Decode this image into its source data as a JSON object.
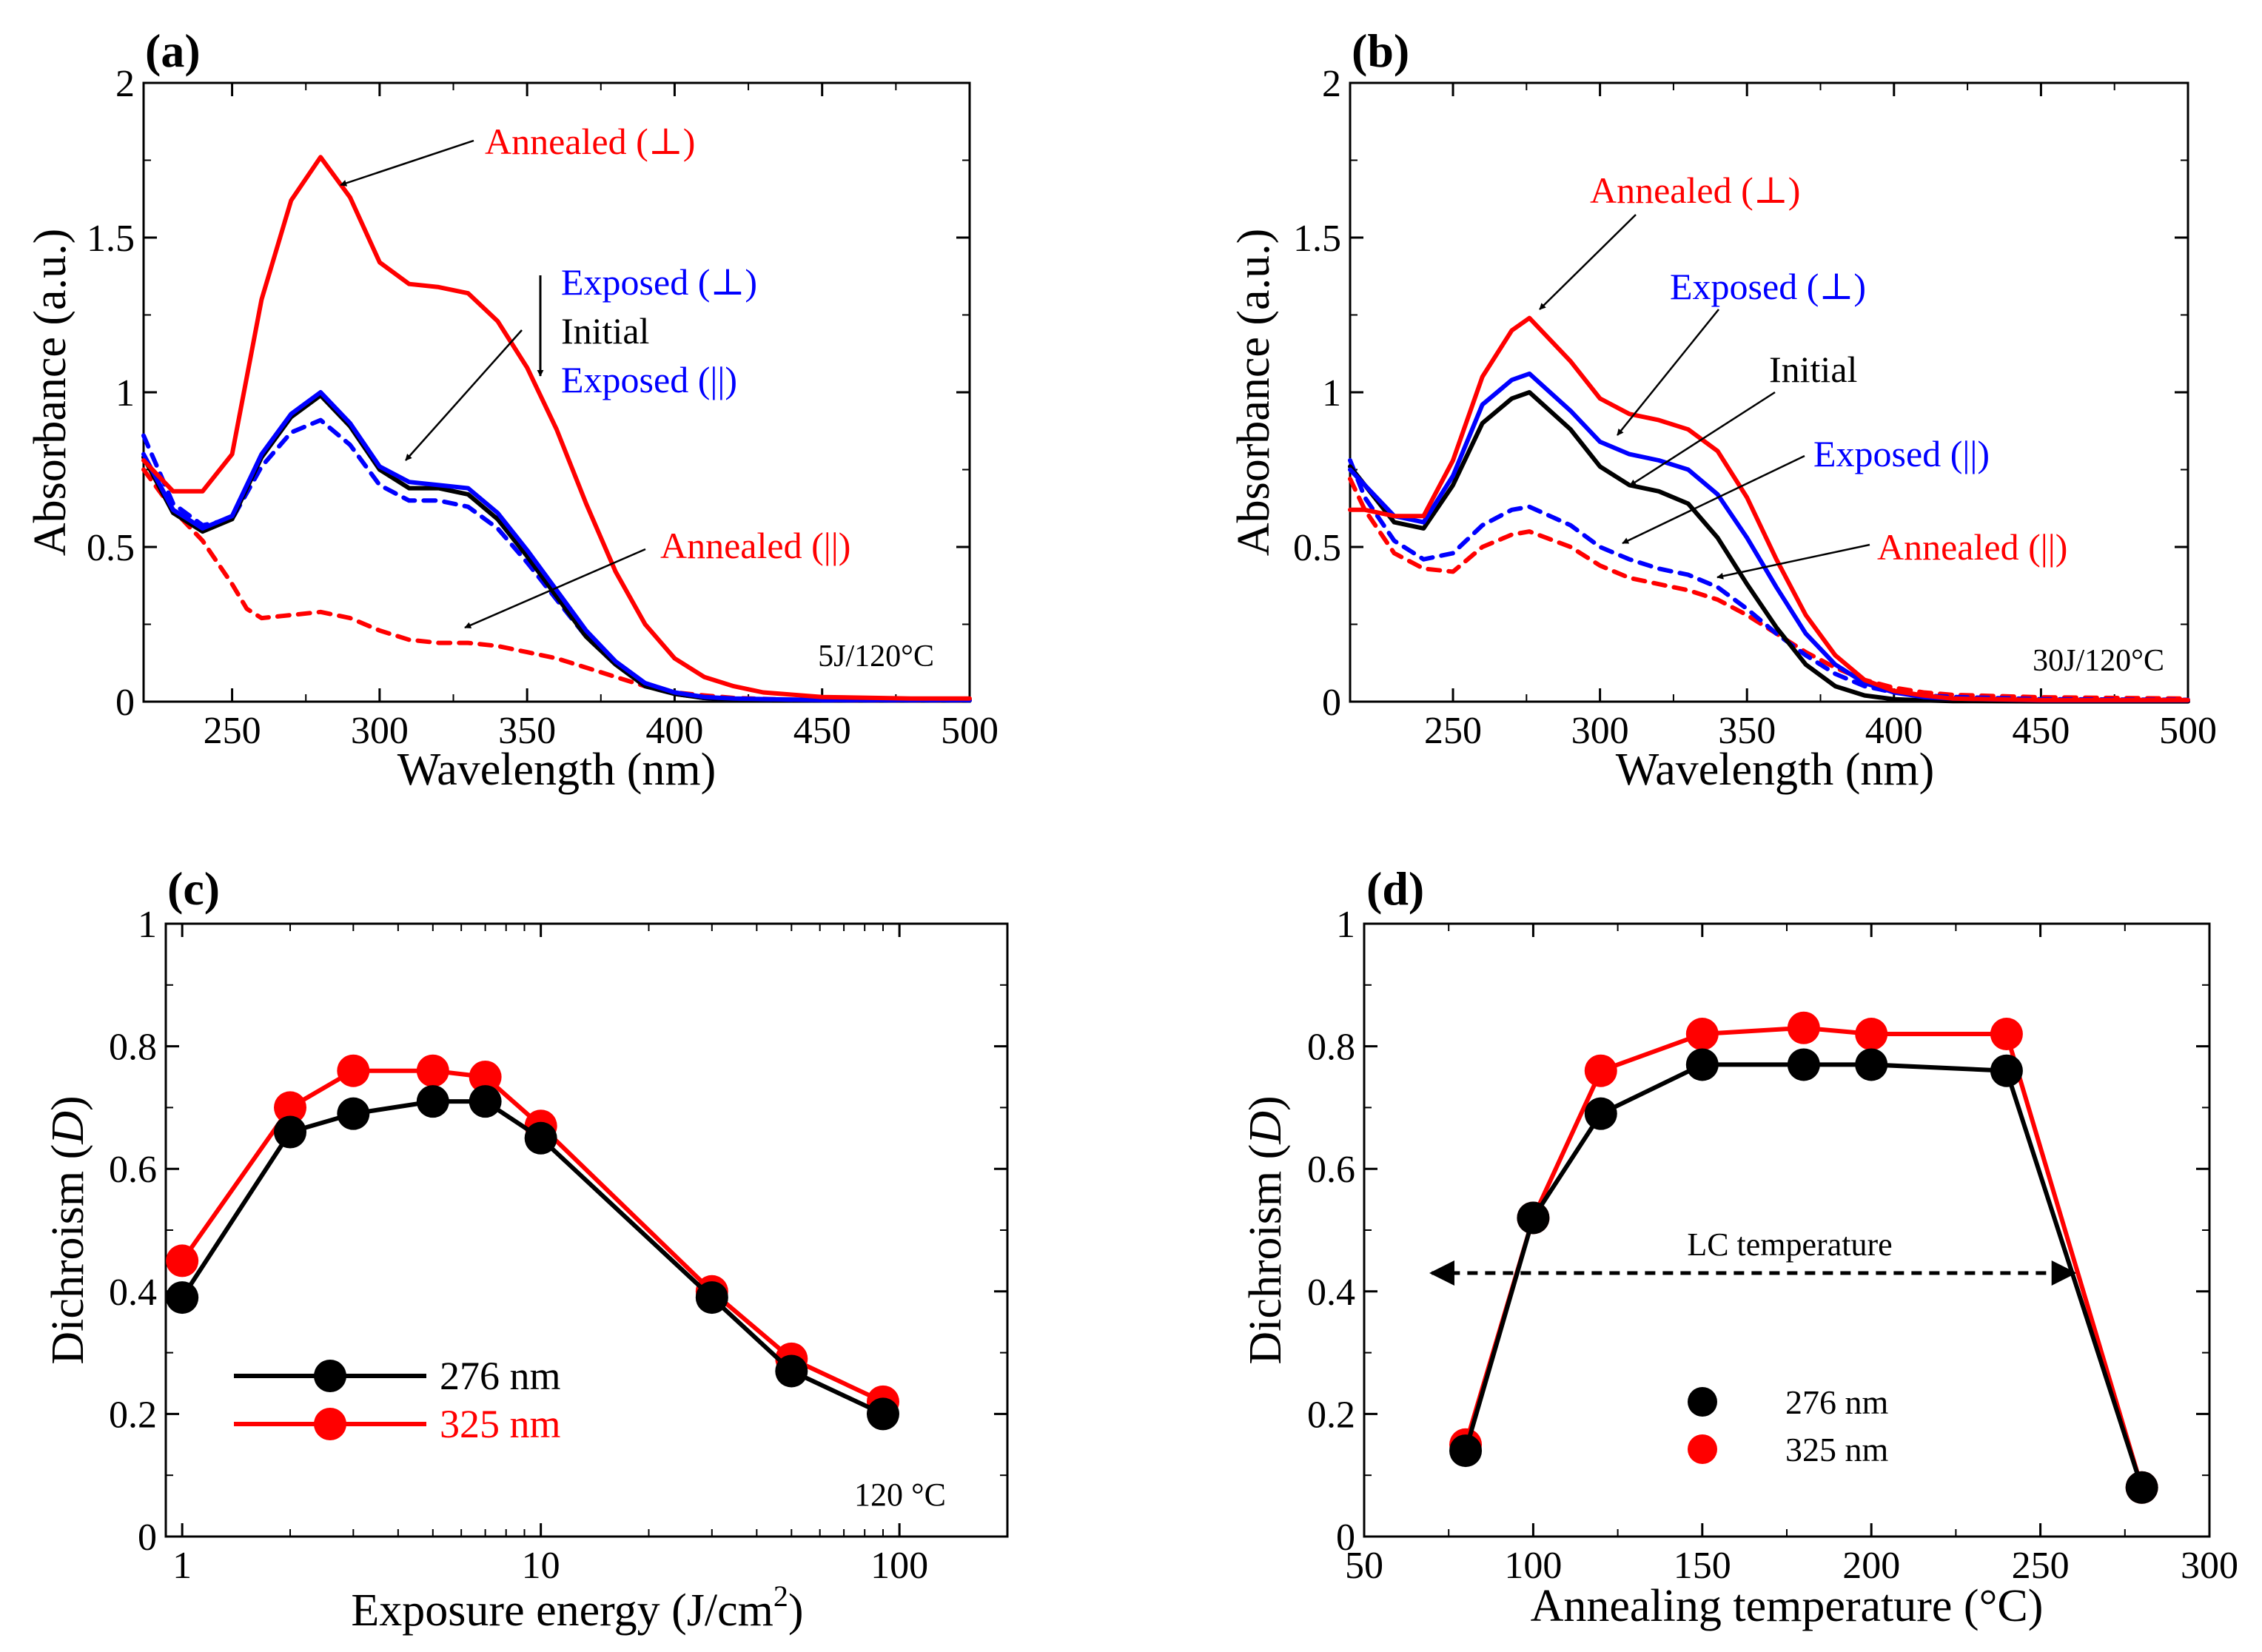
{
  "colors": {
    "black": "#000000",
    "red": "#ff0000",
    "blue": "#0000ff"
  },
  "chart_data": [
    {
      "panel_label": "(a)",
      "type": "line",
      "xlabel": "Wavelength (nm)",
      "ylabel": "Absorbance (a.u.)",
      "xlim": [
        220,
        500
      ],
      "ylim": [
        0,
        2
      ],
      "xticks": [
        250,
        300,
        350,
        400,
        450,
        500
      ],
      "yticks": [
        0,
        0.5,
        1,
        1.5,
        2
      ],
      "ytick_labels": [
        "0",
        "0.5",
        "1",
        "1.5",
        "2"
      ],
      "condition": "5J/120°C",
      "series": [
        {
          "name": "Annealed (⊥)",
          "color": "#ff0000",
          "dash": false,
          "x": [
            220,
            230,
            240,
            250,
            260,
            270,
            280,
            290,
            300,
            310,
            320,
            330,
            340,
            350,
            360,
            370,
            380,
            390,
            400,
            410,
            420,
            430,
            450,
            480,
            500
          ],
          "y": [
            0.78,
            0.68,
            0.68,
            0.8,
            1.3,
            1.62,
            1.76,
            1.63,
            1.42,
            1.35,
            1.34,
            1.32,
            1.23,
            1.08,
            0.88,
            0.64,
            0.42,
            0.25,
            0.14,
            0.08,
            0.05,
            0.03,
            0.015,
            0.01,
            0.01
          ]
        },
        {
          "name": "Exposed (⊥)",
          "color": "#0000ff",
          "dash": false,
          "x": [
            220,
            230,
            240,
            250,
            260,
            270,
            280,
            290,
            300,
            310,
            320,
            330,
            340,
            350,
            360,
            370,
            380,
            390,
            400,
            410,
            420,
            450,
            500
          ],
          "y": [
            0.8,
            0.62,
            0.56,
            0.6,
            0.8,
            0.93,
            1.0,
            0.9,
            0.76,
            0.71,
            0.7,
            0.69,
            0.61,
            0.49,
            0.36,
            0.23,
            0.13,
            0.06,
            0.03,
            0.015,
            0.01,
            0.005,
            0.005
          ]
        },
        {
          "name": "Initial",
          "color": "#000000",
          "dash": false,
          "x": [
            220,
            230,
            240,
            250,
            260,
            270,
            280,
            290,
            300,
            310,
            320,
            330,
            340,
            350,
            360,
            370,
            380,
            390,
            400,
            410,
            420,
            450,
            500
          ],
          "y": [
            0.79,
            0.61,
            0.55,
            0.59,
            0.79,
            0.92,
            0.99,
            0.89,
            0.75,
            0.69,
            0.69,
            0.67,
            0.59,
            0.47,
            0.34,
            0.21,
            0.12,
            0.05,
            0.025,
            0.012,
            0.008,
            0.004,
            0.004
          ]
        },
        {
          "name": "Exposed (||)",
          "color": "#0000ff",
          "dash": true,
          "x": [
            220,
            230,
            240,
            250,
            260,
            270,
            280,
            290,
            300,
            310,
            320,
            330,
            340,
            350,
            360,
            370,
            380,
            390,
            400,
            410,
            420,
            450,
            500
          ],
          "y": [
            0.86,
            0.64,
            0.57,
            0.59,
            0.76,
            0.87,
            0.91,
            0.83,
            0.7,
            0.65,
            0.65,
            0.63,
            0.56,
            0.45,
            0.33,
            0.21,
            0.12,
            0.05,
            0.025,
            0.012,
            0.008,
            0.004,
            0.004
          ]
        },
        {
          "name": "Annealed (||)",
          "color": "#ff0000",
          "dash": true,
          "x": [
            220,
            230,
            240,
            250,
            255,
            260,
            270,
            280,
            290,
            300,
            310,
            320,
            330,
            340,
            350,
            360,
            370,
            380,
            390,
            400,
            410,
            420,
            440,
            460,
            500
          ],
          "y": [
            0.75,
            0.62,
            0.52,
            0.38,
            0.3,
            0.27,
            0.28,
            0.29,
            0.27,
            0.23,
            0.2,
            0.19,
            0.19,
            0.18,
            0.16,
            0.14,
            0.11,
            0.08,
            0.05,
            0.03,
            0.02,
            0.012,
            0.006,
            0.004,
            0.004
          ]
        }
      ],
      "annotations": [
        {
          "text": "Annealed (⊥)",
          "color": "#ff0000"
        },
        {
          "text": "Exposed (⊥)",
          "color": "#0000ff"
        },
        {
          "text": "Initial",
          "color": "#000000"
        },
        {
          "text": "Exposed (||)",
          "color": "#0000ff"
        },
        {
          "text": "Annealed (||)",
          "color": "#ff0000"
        }
      ]
    },
    {
      "panel_label": "(b)",
      "type": "line",
      "xlabel": "Wavelength (nm)",
      "ylabel": "Absorbance (a.u.)",
      "xlim": [
        215,
        500
      ],
      "ylim": [
        0,
        2
      ],
      "xticks": [
        250,
        300,
        350,
        400,
        450,
        500
      ],
      "yticks": [
        0,
        0.5,
        1,
        1.5,
        2
      ],
      "ytick_labels": [
        "0",
        "0.5",
        "1",
        "1.5",
        "2"
      ],
      "condition": "30J/120°C",
      "series": [
        {
          "name": "Annealed (⊥)",
          "color": "#ff0000",
          "dash": false,
          "x": [
            215,
            220,
            230,
            240,
            250,
            260,
            270,
            276,
            290,
            300,
            310,
            320,
            330,
            340,
            350,
            360,
            370,
            380,
            390,
            400,
            410,
            420,
            450,
            500
          ],
          "y": [
            0.62,
            0.62,
            0.6,
            0.6,
            0.78,
            1.05,
            1.2,
            1.24,
            1.1,
            0.98,
            0.93,
            0.91,
            0.88,
            0.81,
            0.66,
            0.46,
            0.28,
            0.15,
            0.07,
            0.035,
            0.02,
            0.01,
            0.005,
            0.005
          ]
        },
        {
          "name": "Exposed (⊥)",
          "color": "#0000ff",
          "dash": false,
          "x": [
            215,
            220,
            230,
            240,
            250,
            260,
            270,
            276,
            290,
            300,
            310,
            320,
            330,
            340,
            350,
            360,
            370,
            380,
            390,
            400,
            410,
            420,
            450,
            500
          ],
          "y": [
            0.75,
            0.7,
            0.6,
            0.58,
            0.73,
            0.96,
            1.04,
            1.06,
            0.94,
            0.84,
            0.8,
            0.78,
            0.75,
            0.67,
            0.53,
            0.37,
            0.22,
            0.12,
            0.06,
            0.03,
            0.015,
            0.01,
            0.004,
            0.004
          ]
        },
        {
          "name": "Initial",
          "color": "#000000",
          "dash": false,
          "x": [
            215,
            220,
            230,
            240,
            250,
            260,
            270,
            276,
            290,
            300,
            310,
            320,
            330,
            340,
            350,
            360,
            370,
            380,
            390,
            400,
            410,
            420,
            450,
            500
          ],
          "y": [
            0.76,
            0.7,
            0.58,
            0.56,
            0.7,
            0.9,
            0.98,
            1.0,
            0.88,
            0.76,
            0.7,
            0.68,
            0.64,
            0.53,
            0.38,
            0.24,
            0.12,
            0.05,
            0.02,
            0.008,
            0.004,
            0.002,
            0.001,
            0.001
          ]
        },
        {
          "name": "Exposed (||)",
          "color": "#0000ff",
          "dash": true,
          "x": [
            215,
            220,
            230,
            240,
            250,
            260,
            270,
            276,
            290,
            300,
            310,
            320,
            330,
            340,
            350,
            360,
            370,
            380,
            390,
            400,
            410,
            420,
            450,
            500
          ],
          "y": [
            0.78,
            0.66,
            0.52,
            0.46,
            0.48,
            0.57,
            0.62,
            0.63,
            0.57,
            0.5,
            0.46,
            0.43,
            0.41,
            0.37,
            0.3,
            0.22,
            0.15,
            0.09,
            0.05,
            0.03,
            0.02,
            0.015,
            0.008,
            0.006
          ]
        },
        {
          "name": "Annealed (||)",
          "color": "#ff0000",
          "dash": true,
          "x": [
            215,
            220,
            230,
            240,
            250,
            260,
            270,
            276,
            290,
            300,
            310,
            320,
            330,
            340,
            350,
            360,
            370,
            380,
            390,
            400,
            410,
            420,
            450,
            500
          ],
          "y": [
            0.72,
            0.62,
            0.48,
            0.43,
            0.42,
            0.5,
            0.54,
            0.55,
            0.5,
            0.44,
            0.4,
            0.38,
            0.36,
            0.33,
            0.28,
            0.22,
            0.16,
            0.11,
            0.07,
            0.045,
            0.03,
            0.022,
            0.014,
            0.01
          ]
        }
      ],
      "annotations": [
        {
          "text": "Annealed (⊥)",
          "color": "#ff0000"
        },
        {
          "text": "Exposed (⊥)",
          "color": "#0000ff"
        },
        {
          "text": "Initial",
          "color": "#000000"
        },
        {
          "text": "Exposed (||)",
          "color": "#0000ff"
        },
        {
          "text": "Annealed (||)",
          "color": "#ff0000"
        }
      ]
    },
    {
      "panel_label": "(c)",
      "type": "line",
      "xscale": "log",
      "xlabel": "Exposure energy (J/cm",
      "xlabel_sup": "2",
      "xlabel_end": ")",
      "ylabel": "Dichroism (",
      "ylabel_ital": "D",
      "ylabel_end": ")",
      "xlim": [
        0.9,
        200
      ],
      "ylim": [
        0,
        1
      ],
      "xticks": [
        1,
        10,
        100
      ],
      "yticks": [
        0,
        0.2,
        0.4,
        0.6,
        0.8,
        1
      ],
      "ytick_labels": [
        "0",
        "0.2",
        "0.4",
        "0.6",
        "0.8",
        "1"
      ],
      "condition": "120 °C",
      "series": [
        {
          "name": "276 nm",
          "color": "#000000",
          "x": [
            1,
            2,
            3,
            5,
            7,
            10,
            30,
            50,
            90
          ],
          "y": [
            0.39,
            0.66,
            0.69,
            0.71,
            0.71,
            0.65,
            0.39,
            0.27,
            0.2
          ]
        },
        {
          "name": "325 nm",
          "color": "#ff0000",
          "x": [
            1,
            2,
            3,
            5,
            7,
            10,
            30,
            50,
            90
          ],
          "y": [
            0.45,
            0.7,
            0.76,
            0.76,
            0.75,
            0.67,
            0.4,
            0.29,
            0.22
          ]
        }
      ]
    },
    {
      "panel_label": "(d)",
      "type": "line",
      "xlabel": "Annealing temperature (°C)",
      "ylabel": "Dichroism (",
      "ylabel_ital": "D",
      "ylabel_end": ")",
      "xlim": [
        50,
        300
      ],
      "ylim": [
        0,
        1
      ],
      "xticks": [
        50,
        100,
        150,
        200,
        250,
        300
      ],
      "yticks": [
        0,
        0.2,
        0.4,
        0.6,
        0.8,
        1
      ],
      "ytick_labels": [
        "0",
        "0.2",
        "0.4",
        "0.6",
        "0.8",
        "1"
      ],
      "annotation": "LC temperature",
      "lc_range": [
        70,
        260
      ],
      "lc_value": 0.43,
      "series": [
        {
          "name": "276 nm",
          "color": "#000000",
          "x": [
            80,
            100,
            120,
            150,
            180,
            200,
            240,
            280
          ],
          "y": [
            0.14,
            0.52,
            0.69,
            0.77,
            0.77,
            0.77,
            0.76,
            0.08
          ]
        },
        {
          "name": "325 nm",
          "color": "#ff0000",
          "x": [
            80,
            100,
            120,
            150,
            180,
            200,
            240,
            280
          ],
          "y": [
            0.15,
            0.52,
            0.76,
            0.82,
            0.83,
            0.82,
            0.82,
            0.08
          ]
        }
      ]
    }
  ]
}
